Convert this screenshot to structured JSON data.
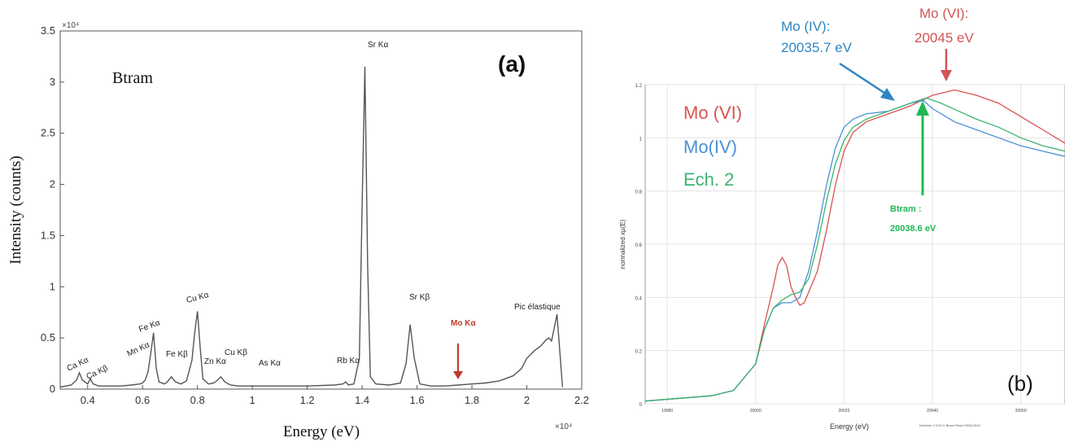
{
  "chart_data": [
    {
      "type": "line",
      "panel_label": "(a)",
      "sample_label": "Btram",
      "xlabel": "Energy (eV)",
      "ylabel": "Intensity (counts)",
      "x_multiplier": "×10⁴",
      "y_multiplier": "×10⁴",
      "xlim": [
        0.3,
        2.2
      ],
      "ylim": [
        0,
        3.5
      ],
      "xticks": [
        "0.4",
        "0.6",
        "0.8",
        "1",
        "1.2",
        "1.4",
        "1.6",
        "1.8",
        "2",
        "2.2"
      ],
      "yticks": [
        "0",
        "0.5",
        "1",
        "1.5",
        "2",
        "2.5",
        "3",
        "3.5"
      ],
      "series": [
        {
          "x": [
            0.3,
            0.34,
            0.36,
            0.37,
            0.38,
            0.4,
            0.41,
            0.42,
            0.44,
            0.48,
            0.52,
            0.56,
            0.59,
            0.6,
            0.61,
            0.62,
            0.63,
            0.64,
            0.65,
            0.66,
            0.68,
            0.69,
            0.705,
            0.72,
            0.74,
            0.76,
            0.78,
            0.79,
            0.8,
            0.81,
            0.82,
            0.84,
            0.86,
            0.87,
            0.885,
            0.9,
            0.92,
            0.95,
            1.0,
            1.05,
            1.1,
            1.2,
            1.3,
            1.33,
            1.34,
            1.35,
            1.37,
            1.39,
            1.4,
            1.41,
            1.42,
            1.43,
            1.45,
            1.5,
            1.54,
            1.56,
            1.575,
            1.59,
            1.61,
            1.65,
            1.7,
            1.75,
            1.8,
            1.85,
            1.9,
            1.95,
            1.98,
            2.0,
            2.03,
            2.05,
            2.06,
            2.07,
            2.08,
            2.09,
            2.1,
            2.11,
            2.13
          ],
          "y": [
            0.02,
            0.04,
            0.09,
            0.16,
            0.09,
            0.05,
            0.1,
            0.05,
            0.03,
            0.03,
            0.03,
            0.04,
            0.05,
            0.06,
            0.09,
            0.17,
            0.35,
            0.55,
            0.2,
            0.07,
            0.05,
            0.07,
            0.12,
            0.07,
            0.05,
            0.08,
            0.28,
            0.55,
            0.76,
            0.4,
            0.1,
            0.05,
            0.06,
            0.08,
            0.12,
            0.07,
            0.04,
            0.03,
            0.03,
            0.03,
            0.03,
            0.03,
            0.04,
            0.05,
            0.07,
            0.04,
            0.05,
            0.3,
            1.8,
            3.15,
            1.2,
            0.12,
            0.05,
            0.04,
            0.06,
            0.25,
            0.63,
            0.3,
            0.05,
            0.03,
            0.03,
            0.04,
            0.05,
            0.06,
            0.08,
            0.13,
            0.2,
            0.3,
            0.38,
            0.42,
            0.45,
            0.48,
            0.5,
            0.47,
            0.6,
            0.73,
            0.02
          ]
        }
      ],
      "peak_labels": [
        {
          "text": "Ca Kα"
        },
        {
          "text": "Ca Kβ"
        },
        {
          "text": "Mn Kα"
        },
        {
          "text": "Fe Kα"
        },
        {
          "text": "Fe Kβ"
        },
        {
          "text": "Cu Kα"
        },
        {
          "text": "Zn Kα"
        },
        {
          "text": "Cu Kβ"
        },
        {
          "text": "As Kα"
        },
        {
          "text": "Rb Kα"
        },
        {
          "text": "Sr Kα"
        },
        {
          "text": "Sr Kβ"
        },
        {
          "text": "Mo Kα"
        },
        {
          "text": "Pic élastique"
        }
      ],
      "colors": {
        "line": "#555555",
        "mo_label": "#c0392b"
      }
    },
    {
      "type": "line",
      "panel_label": "(b)",
      "xlabel": "Energy (eV)",
      "ylabel": "normalized xµ(E)",
      "xlim": [
        19975,
        20070
      ],
      "ylim": [
        0,
        1.2
      ],
      "xticks": [
        "19980",
        "20000",
        "20020",
        "20040",
        "20060"
      ],
      "yticks": [
        "0",
        "0.2",
        "0.4",
        "0.6",
        "0.8",
        "1",
        "1.2"
      ],
      "footer_note": "Demeter 0.9.24 © Bruce Ravel 2006-2015",
      "legend": [
        {
          "label": "Mo (VI)",
          "color": "#d9534f"
        },
        {
          "label": "Mo(IV)",
          "color": "#4a90d9"
        },
        {
          "label": "Ech. 2",
          "color": "#3cb371"
        }
      ],
      "annotations": [
        {
          "title": "Mo (IV):",
          "value": "20035.7 eV",
          "color": "#2e86c1"
        },
        {
          "title": "Mo (VI):",
          "value": "20045 eV",
          "color": "#d35454"
        },
        {
          "title": "Btram :",
          "value": "20038.6 eV",
          "color": "#1eb854"
        }
      ],
      "series": [
        {
          "name": "Mo (VI)",
          "color": "#d9534f",
          "x": [
            19975,
            19990,
            19995,
            20000,
            20002,
            20004,
            20005,
            20006,
            20007,
            20008,
            20009,
            20010,
            20011,
            20012,
            20014,
            20016,
            20018,
            20020,
            20022,
            20025,
            20030,
            20035,
            20040,
            20045,
            20050,
            20055,
            20060,
            20065,
            20070
          ],
          "y": [
            0.01,
            0.03,
            0.05,
            0.15,
            0.3,
            0.44,
            0.52,
            0.55,
            0.52,
            0.44,
            0.4,
            0.37,
            0.38,
            0.42,
            0.5,
            0.65,
            0.82,
            0.95,
            1.02,
            1.06,
            1.09,
            1.12,
            1.16,
            1.18,
            1.16,
            1.13,
            1.08,
            1.03,
            0.98
          ]
        },
        {
          "name": "Mo(IV)",
          "color": "#4a90d9",
          "x": [
            19975,
            19990,
            19995,
            20000,
            20002,
            20004,
            20006,
            20008,
            20010,
            20012,
            20014,
            20016,
            20018,
            20020,
            20022,
            20025,
            20030,
            20035,
            20038,
            20040,
            20045,
            20050,
            20055,
            20060,
            20065,
            20070
          ],
          "y": [
            0.01,
            0.03,
            0.05,
            0.15,
            0.28,
            0.36,
            0.38,
            0.38,
            0.4,
            0.5,
            0.65,
            0.82,
            0.96,
            1.04,
            1.07,
            1.09,
            1.1,
            1.13,
            1.14,
            1.11,
            1.06,
            1.03,
            1.0,
            0.97,
            0.95,
            0.93
          ]
        },
        {
          "name": "Ech. 2",
          "color": "#3cb371",
          "x": [
            19975,
            19990,
            19995,
            20000,
            20002,
            20004,
            20006,
            20008,
            20010,
            20012,
            20014,
            20016,
            20018,
            20020,
            20022,
            20025,
            20030,
            20035,
            20038.6,
            20042,
            20046,
            20050,
            20055,
            20060,
            20065,
            20070
          ],
          "y": [
            0.01,
            0.03,
            0.05,
            0.15,
            0.28,
            0.36,
            0.39,
            0.41,
            0.42,
            0.47,
            0.6,
            0.76,
            0.9,
            0.99,
            1.04,
            1.07,
            1.1,
            1.13,
            1.15,
            1.13,
            1.1,
            1.07,
            1.04,
            1.0,
            0.97,
            0.95
          ]
        }
      ]
    }
  ]
}
